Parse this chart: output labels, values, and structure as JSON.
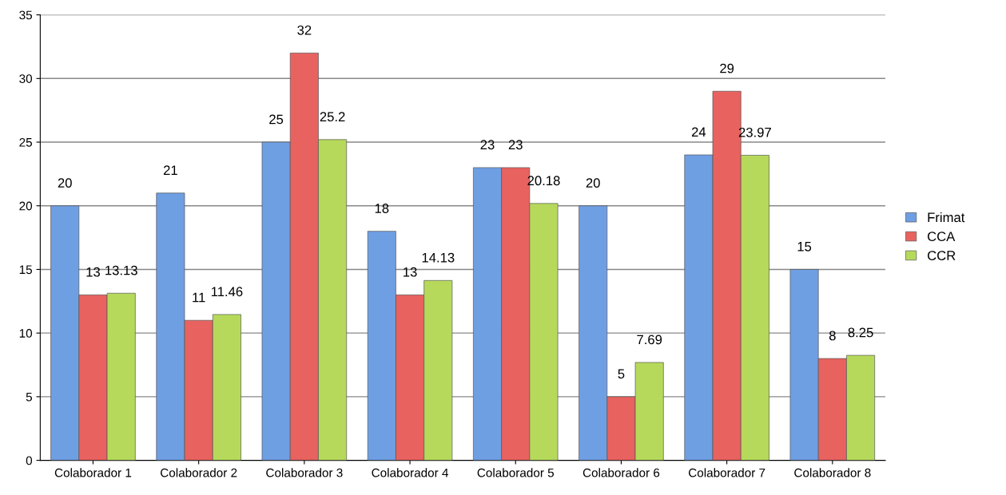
{
  "chart_data": {
    "type": "bar",
    "categories": [
      "Colaborador 1",
      "Colaborador 2",
      "Colaborador 3",
      "Colaborador 4",
      "Colaborador 5",
      "Colaborador 6",
      "Colaborador 7",
      "Colaborador 8"
    ],
    "series": [
      {
        "name": "Frimat",
        "color": "#6f9fe3",
        "values": [
          20,
          21,
          25,
          18,
          23,
          20,
          24,
          15
        ]
      },
      {
        "name": "CCA",
        "color": "#e8625f",
        "values": [
          13,
          11,
          32,
          13,
          23,
          5,
          29,
          8
        ]
      },
      {
        "name": "CCR",
        "color": "#b6d95b",
        "values": [
          13.13,
          11.46,
          25.2,
          14.13,
          20.18,
          7.69,
          23.97,
          8.25
        ]
      }
    ],
    "ylim": [
      0,
      35
    ],
    "yticks": [
      0,
      5,
      10,
      15,
      20,
      25,
      30,
      35
    ],
    "grid": "y",
    "legend": "right",
    "data_labels": true
  }
}
